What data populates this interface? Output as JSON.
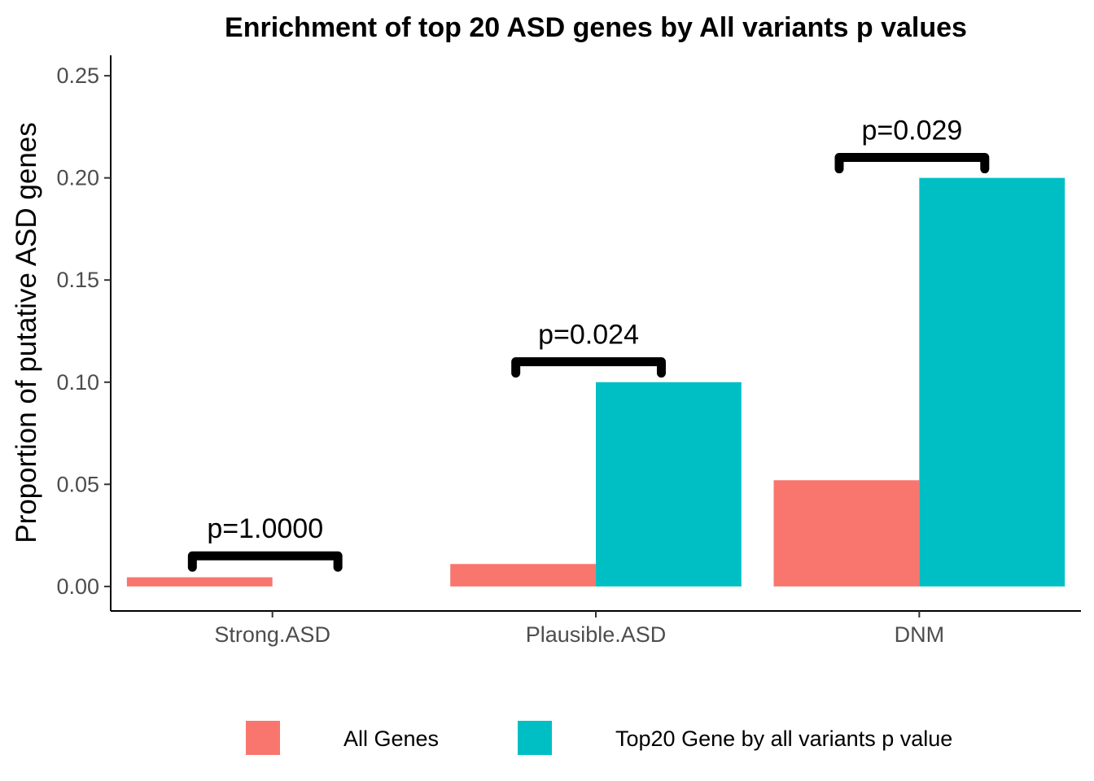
{
  "chart_data": {
    "type": "bar",
    "title": "Enrichment of top 20 ASD genes by All variants p values",
    "xlabel": "",
    "ylabel": "Proportion of putative ASD genes",
    "categories": [
      "Strong.ASD",
      "Plausible.ASD",
      "DNM"
    ],
    "series": [
      {
        "name": "All Genes",
        "color": "#F8766D",
        "values": [
          0.0045,
          0.011,
          0.052
        ]
      },
      {
        "name": "Top20 Gene by all variants p value",
        "color": "#00BFC4",
        "values": [
          0.0,
          0.1,
          0.2
        ]
      }
    ],
    "ylim": [
      -0.012,
      0.26
    ],
    "yticks": [
      0.0,
      0.05,
      0.1,
      0.15,
      0.2,
      0.25
    ],
    "ytick_labels": [
      "0.00",
      "0.05",
      "0.10",
      "0.15",
      "0.20",
      "0.25"
    ],
    "annotations": [
      {
        "category": "Strong.ASD",
        "text": "p=1.0000",
        "bracket_y": 0.015
      },
      {
        "category": "Plausible.ASD",
        "text": "p=0.024",
        "bracket_y": 0.11
      },
      {
        "category": "DNM",
        "text": "p=0.029",
        "bracket_y": 0.21
      }
    ],
    "grid": false,
    "legend_position": "bottom"
  }
}
